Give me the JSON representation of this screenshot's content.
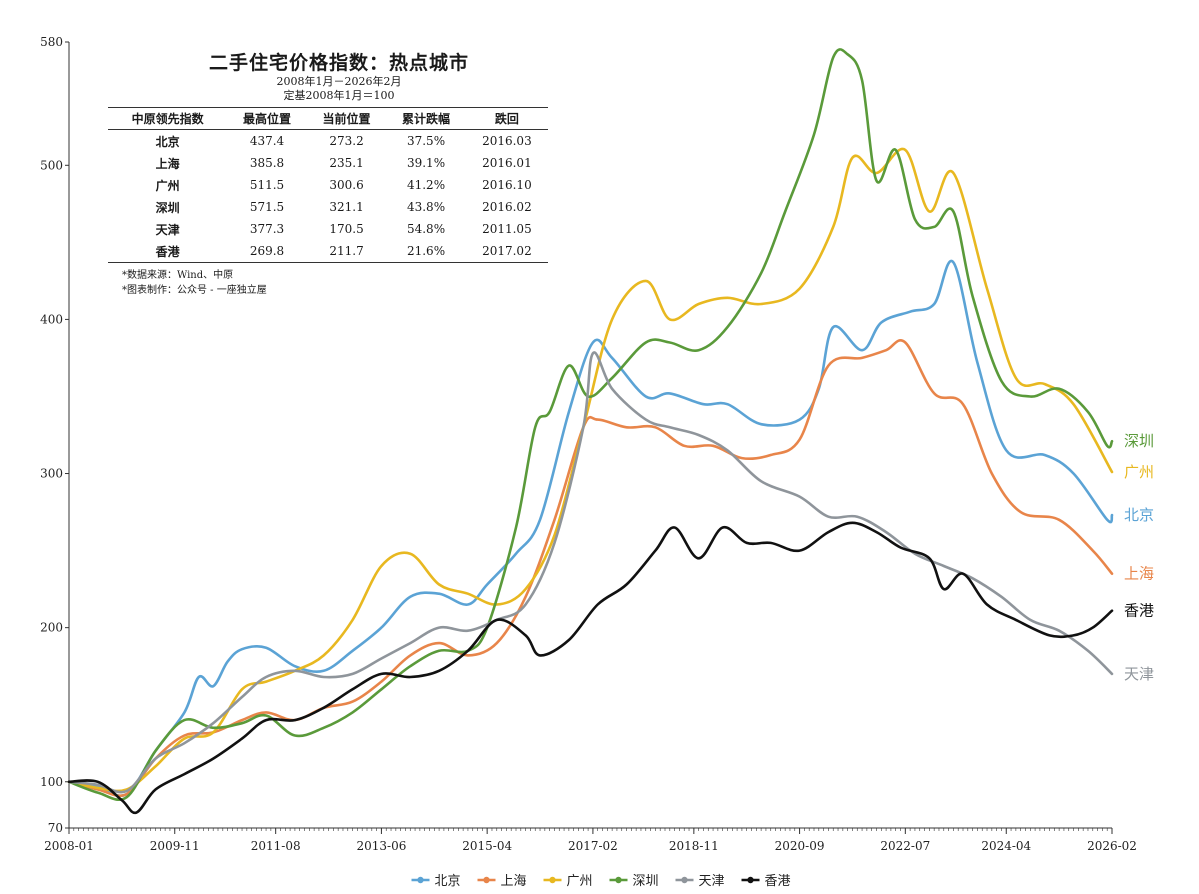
{
  "info": {
    "title": "二手住宅价格指数：热点城市",
    "subtitle1": "2008年1月－2026年2月",
    "subtitle2": "定基2008年1月＝100",
    "headers": [
      "中原领先指数",
      "最高位置",
      "当前位置",
      "累计跌幅",
      "跌回"
    ],
    "rows": [
      [
        "北京",
        "437.4",
        "273.2",
        "37.5%",
        "2016.03"
      ],
      [
        "上海",
        "385.8",
        "235.1",
        "39.1%",
        "2016.01"
      ],
      [
        "广州",
        "511.5",
        "300.6",
        "41.2%",
        "2016.10"
      ],
      [
        "深圳",
        "571.5",
        "321.1",
        "43.8%",
        "2016.02"
      ],
      [
        "天津",
        "377.3",
        "170.5",
        "54.8%",
        "2011.05"
      ],
      [
        "香港",
        "269.8",
        "211.7",
        "21.6%",
        "2017.02"
      ]
    ],
    "note1": "*数据来源：Wind、中原",
    "note2": "*图表制作：公众号 - 一座独立屋"
  },
  "chart_data": {
    "type": "line",
    "title": "二手住宅价格指数：热点城市",
    "xlabel": "",
    "ylabel": "",
    "ylim": [
      70,
      580
    ],
    "y_ticks": [
      70,
      100,
      200,
      300,
      400,
      500,
      580
    ],
    "xlim": [
      "2008-01",
      "2026-02"
    ],
    "x_ticks": [
      "2008-01",
      "2009-11",
      "2011-08",
      "2013-06",
      "2015-04",
      "2017-02",
      "2018-11",
      "2020-09",
      "2022-07",
      "2024-04",
      "2026-02"
    ],
    "grid": false,
    "legend_position": "bottom",
    "series": [
      {
        "name": "北京",
        "color": "#5ba3d5",
        "points": [
          [
            "2008-01",
            100
          ],
          [
            "2008-07",
            97
          ],
          [
            "2009-01",
            92
          ],
          [
            "2009-07",
            120
          ],
          [
            "2010-01",
            145
          ],
          [
            "2010-04",
            168
          ],
          [
            "2010-07",
            162
          ],
          [
            "2010-10",
            178
          ],
          [
            "2011-01",
            186
          ],
          [
            "2011-06",
            187
          ],
          [
            "2011-12",
            175
          ],
          [
            "2012-06",
            172
          ],
          [
            "2012-12",
            185
          ],
          [
            "2013-06",
            200
          ],
          [
            "2013-12",
            220
          ],
          [
            "2014-06",
            222
          ],
          [
            "2014-12",
            215
          ],
          [
            "2015-04",
            228
          ],
          [
            "2015-10",
            248
          ],
          [
            "2016-03",
            270
          ],
          [
            "2016-09",
            340
          ],
          [
            "2017-02",
            385
          ],
          [
            "2017-06",
            375
          ],
          [
            "2018-01",
            350
          ],
          [
            "2018-06",
            352
          ],
          [
            "2019-01",
            345
          ],
          [
            "2019-06",
            345
          ],
          [
            "2020-01",
            332
          ],
          [
            "2020-09",
            335
          ],
          [
            "2021-01",
            355
          ],
          [
            "2021-04",
            395
          ],
          [
            "2021-10",
            380
          ],
          [
            "2022-02",
            398
          ],
          [
            "2022-08",
            405
          ],
          [
            "2023-01",
            410
          ],
          [
            "2023-05",
            437
          ],
          [
            "2023-10",
            372
          ],
          [
            "2024-04",
            315
          ],
          [
            "2024-12",
            312
          ],
          [
            "2025-06",
            300
          ],
          [
            "2026-01",
            270
          ],
          [
            "2026-02",
            273
          ]
        ]
      },
      {
        "name": "上海",
        "color": "#e8854a",
        "points": [
          [
            "2008-01",
            100
          ],
          [
            "2008-07",
            95
          ],
          [
            "2009-01",
            92
          ],
          [
            "2009-07",
            115
          ],
          [
            "2010-01",
            130
          ],
          [
            "2010-07",
            132
          ],
          [
            "2011-01",
            140
          ],
          [
            "2011-06",
            145
          ],
          [
            "2011-12",
            140
          ],
          [
            "2012-06",
            148
          ],
          [
            "2012-12",
            152
          ],
          [
            "2013-06",
            165
          ],
          [
            "2013-12",
            182
          ],
          [
            "2014-06",
            190
          ],
          [
            "2014-12",
            182
          ],
          [
            "2015-06",
            190
          ],
          [
            "2015-12",
            220
          ],
          [
            "2016-06",
            270
          ],
          [
            "2016-12",
            330
          ],
          [
            "2017-03",
            335
          ],
          [
            "2017-09",
            330
          ],
          [
            "2018-03",
            330
          ],
          [
            "2018-09",
            318
          ],
          [
            "2019-03",
            318
          ],
          [
            "2019-09",
            310
          ],
          [
            "2020-03",
            312
          ],
          [
            "2020-09",
            322
          ],
          [
            "2021-03",
            370
          ],
          [
            "2021-10",
            375
          ],
          [
            "2022-03",
            380
          ],
          [
            "2022-07",
            385
          ],
          [
            "2023-01",
            352
          ],
          [
            "2023-07",
            345
          ],
          [
            "2024-01",
            300
          ],
          [
            "2024-07",
            275
          ],
          [
            "2025-03",
            270
          ],
          [
            "2025-10",
            250
          ],
          [
            "2026-02",
            235
          ]
        ]
      },
      {
        "name": "广州",
        "color": "#e8b820",
        "points": [
          [
            "2008-01",
            100
          ],
          [
            "2008-07",
            96
          ],
          [
            "2009-01",
            95
          ],
          [
            "2009-07",
            110
          ],
          [
            "2010-01",
            128
          ],
          [
            "2010-07",
            132
          ],
          [
            "2011-01",
            160
          ],
          [
            "2011-06",
            165
          ],
          [
            "2011-12",
            172
          ],
          [
            "2012-06",
            182
          ],
          [
            "2012-12",
            205
          ],
          [
            "2013-06",
            240
          ],
          [
            "2013-12",
            248
          ],
          [
            "2014-06",
            228
          ],
          [
            "2014-12",
            222
          ],
          [
            "2015-06",
            215
          ],
          [
            "2015-12",
            225
          ],
          [
            "2016-06",
            260
          ],
          [
            "2016-12",
            330
          ],
          [
            "2017-06",
            400
          ],
          [
            "2018-01",
            425
          ],
          [
            "2018-06",
            400
          ],
          [
            "2018-12",
            410
          ],
          [
            "2019-06",
            414
          ],
          [
            "2020-01",
            410
          ],
          [
            "2020-09",
            420
          ],
          [
            "2021-04",
            460
          ],
          [
            "2021-08",
            505
          ],
          [
            "2022-01",
            495
          ],
          [
            "2022-07",
            510
          ],
          [
            "2022-12",
            470
          ],
          [
            "2023-05",
            495
          ],
          [
            "2023-12",
            420
          ],
          [
            "2024-06",
            362
          ],
          [
            "2024-12",
            358
          ],
          [
            "2025-06",
            345
          ],
          [
            "2026-02",
            301
          ]
        ]
      },
      {
        "name": "深圳",
        "color": "#5a9a3a",
        "points": [
          [
            "2008-01",
            100
          ],
          [
            "2008-07",
            93
          ],
          [
            "2009-01",
            90
          ],
          [
            "2009-07",
            120
          ],
          [
            "2010-01",
            140
          ],
          [
            "2010-07",
            135
          ],
          [
            "2011-01",
            138
          ],
          [
            "2011-06",
            143
          ],
          [
            "2011-12",
            130
          ],
          [
            "2012-06",
            135
          ],
          [
            "2012-12",
            145
          ],
          [
            "2013-06",
            160
          ],
          [
            "2013-12",
            175
          ],
          [
            "2014-06",
            185
          ],
          [
            "2014-12",
            185
          ],
          [
            "2015-04",
            200
          ],
          [
            "2015-10",
            265
          ],
          [
            "2016-02",
            330
          ],
          [
            "2016-05",
            340
          ],
          [
            "2016-09",
            370
          ],
          [
            "2017-01",
            350
          ],
          [
            "2017-06",
            362
          ],
          [
            "2018-01",
            385
          ],
          [
            "2018-06",
            385
          ],
          [
            "2018-12",
            380
          ],
          [
            "2019-06",
            395
          ],
          [
            "2020-01",
            430
          ],
          [
            "2020-06",
            470
          ],
          [
            "2020-12",
            520
          ],
          [
            "2021-04",
            570
          ],
          [
            "2021-07",
            572
          ],
          [
            "2021-10",
            555
          ],
          [
            "2022-01",
            490
          ],
          [
            "2022-05",
            510
          ],
          [
            "2022-09",
            465
          ],
          [
            "2023-01",
            460
          ],
          [
            "2023-05",
            470
          ],
          [
            "2023-09",
            415
          ],
          [
            "2024-03",
            360
          ],
          [
            "2024-09",
            350
          ],
          [
            "2025-03",
            355
          ],
          [
            "2025-09",
            340
          ],
          [
            "2026-01",
            318
          ],
          [
            "2026-02",
            321
          ]
        ]
      },
      {
        "name": "天津",
        "color": "#8f959b",
        "points": [
          [
            "2008-01",
            100
          ],
          [
            "2008-07",
            98
          ],
          [
            "2009-01",
            94
          ],
          [
            "2009-07",
            115
          ],
          [
            "2010-01",
            125
          ],
          [
            "2010-07",
            138
          ],
          [
            "2011-01",
            155
          ],
          [
            "2011-06",
            168
          ],
          [
            "2011-12",
            172
          ],
          [
            "2012-06",
            168
          ],
          [
            "2012-12",
            170
          ],
          [
            "2013-06",
            180
          ],
          [
            "2013-12",
            190
          ],
          [
            "2014-06",
            200
          ],
          [
            "2014-12",
            198
          ],
          [
            "2015-06",
            205
          ],
          [
            "2015-12",
            215
          ],
          [
            "2016-06",
            255
          ],
          [
            "2016-12",
            330
          ],
          [
            "2017-02",
            378
          ],
          [
            "2017-06",
            355
          ],
          [
            "2018-01",
            335
          ],
          [
            "2018-06",
            330
          ],
          [
            "2018-12",
            325
          ],
          [
            "2019-06",
            315
          ],
          [
            "2020-01",
            295
          ],
          [
            "2020-09",
            285
          ],
          [
            "2021-03",
            272
          ],
          [
            "2021-09",
            272
          ],
          [
            "2022-03",
            262
          ],
          [
            "2022-09",
            248
          ],
          [
            "2023-03",
            240
          ],
          [
            "2023-09",
            232
          ],
          [
            "2024-03",
            220
          ],
          [
            "2024-09",
            205
          ],
          [
            "2025-03",
            198
          ],
          [
            "2025-09",
            185
          ],
          [
            "2026-02",
            170
          ]
        ]
      },
      {
        "name": "香港",
        "color": "#111111",
        "points": [
          [
            "2008-01",
            100
          ],
          [
            "2008-07",
            100
          ],
          [
            "2008-12",
            88
          ],
          [
            "2009-03",
            80
          ],
          [
            "2009-07",
            95
          ],
          [
            "2010-01",
            105
          ],
          [
            "2010-07",
            115
          ],
          [
            "2011-01",
            128
          ],
          [
            "2011-06",
            140
          ],
          [
            "2011-12",
            140
          ],
          [
            "2012-06",
            148
          ],
          [
            "2012-12",
            160
          ],
          [
            "2013-06",
            170
          ],
          [
            "2013-12",
            168
          ],
          [
            "2014-06",
            172
          ],
          [
            "2014-12",
            185
          ],
          [
            "2015-06",
            205
          ],
          [
            "2015-12",
            195
          ],
          [
            "2016-03",
            182
          ],
          [
            "2016-09",
            192
          ],
          [
            "2017-03",
            215
          ],
          [
            "2017-09",
            228
          ],
          [
            "2018-03",
            250
          ],
          [
            "2018-07",
            265
          ],
          [
            "2018-12",
            245
          ],
          [
            "2019-05",
            265
          ],
          [
            "2019-10",
            255
          ],
          [
            "2020-03",
            255
          ],
          [
            "2020-09",
            250
          ],
          [
            "2021-03",
            262
          ],
          [
            "2021-08",
            268
          ],
          [
            "2022-01",
            262
          ],
          [
            "2022-06",
            252
          ],
          [
            "2022-12",
            245
          ],
          [
            "2023-03",
            225
          ],
          [
            "2023-07",
            235
          ],
          [
            "2023-12",
            215
          ],
          [
            "2024-06",
            205
          ],
          [
            "2025-01",
            195
          ],
          [
            "2025-06",
            195
          ],
          [
            "2025-10",
            200
          ],
          [
            "2026-02",
            211
          ]
        ]
      }
    ]
  }
}
